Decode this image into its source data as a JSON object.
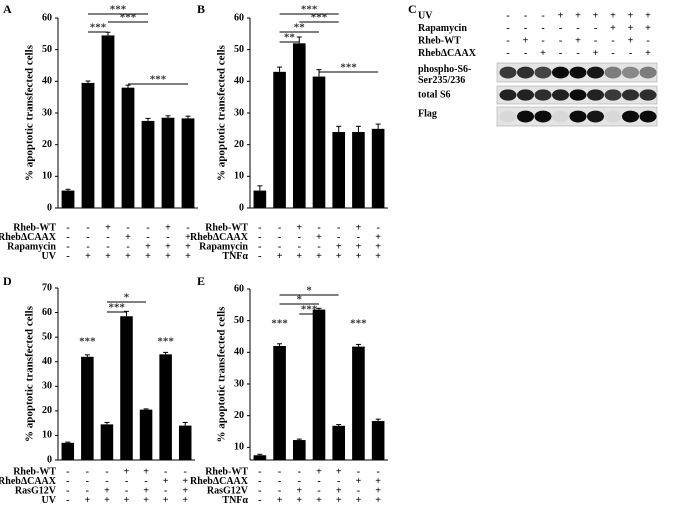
{
  "chart_data": [
    {
      "type": "bar",
      "panel": "A",
      "y_label": "% apoptotic transfected cells",
      "values": [
        5.5,
        39.5,
        54.5,
        38,
        27.5,
        28.5,
        28.3
      ],
      "errors": [
        0.4,
        0.6,
        1,
        0.8,
        0.8,
        0.6,
        0.7
      ],
      "color": "#000000",
      "ylim": [
        0,
        60
      ],
      "yticks": [
        0,
        10,
        20,
        30,
        40,
        50,
        60
      ],
      "conditions": [
        {
          "name": "Rheb-WT",
          "signs": [
            "-",
            "-",
            "+",
            "-",
            "-",
            "+",
            "-"
          ]
        },
        {
          "name": "RhebΔCAAX",
          "signs": [
            "-",
            "-",
            "-",
            "+",
            "-",
            "-",
            "+"
          ]
        },
        {
          "name": "Rapamycin",
          "signs": [
            "-",
            "-",
            "-",
            "-",
            "+",
            "+",
            "+"
          ]
        },
        {
          "name": "UV",
          "signs": [
            "-",
            "+",
            "+",
            "+",
            "+",
            "+",
            "+"
          ]
        }
      ],
      "significance": [
        {
          "text": "***",
          "from": 1,
          "to": 4
        },
        {
          "text": "***",
          "from": 2,
          "to": 4
        },
        {
          "text": "***",
          "from": 1,
          "to": 2
        },
        {
          "text": "***",
          "from": 3,
          "to": 6
        }
      ]
    },
    {
      "type": "bar",
      "panel": "B",
      "y_label": "% apoptotic transfected cells",
      "values": [
        5.5,
        43,
        52,
        41.5,
        24,
        24,
        25
      ],
      "errors": [
        1.5,
        1.5,
        2,
        2.2,
        1.8,
        1.8,
        1.5
      ],
      "color": "#000000",
      "ylim": [
        0,
        60
      ],
      "yticks": [
        0,
        10,
        20,
        30,
        40,
        50,
        60
      ],
      "conditions": [
        {
          "name": "Rheb-WT",
          "signs": [
            "-",
            "-",
            "+",
            "-",
            "-",
            "+",
            "-"
          ]
        },
        {
          "name": "RhebΔCAAX",
          "signs": [
            "-",
            "-",
            "-",
            "+",
            "-",
            "-",
            "+"
          ]
        },
        {
          "name": "Rapamycin",
          "signs": [
            "-",
            "-",
            "-",
            "-",
            "+",
            "+",
            "+"
          ]
        },
        {
          "name": "TNFα",
          "signs": [
            "-",
            "+",
            "+",
            "+",
            "+",
            "+",
            "+"
          ]
        }
      ],
      "significance": [
        {
          "text": "***",
          "from": 1,
          "to": 4
        },
        {
          "text": "***",
          "from": 2,
          "to": 4
        },
        {
          "text": "**",
          "from": 1,
          "to": 3
        },
        {
          "text": "**",
          "from": 1,
          "to": 2
        },
        {
          "text": "***",
          "from": 3,
          "to": 6
        }
      ]
    },
    {
      "type": "bar",
      "panel": "D",
      "y_label": "% apoptotic transfected cells",
      "values": [
        7,
        42,
        14.5,
        58.5,
        20.5,
        43,
        14
      ],
      "errors": [
        0.3,
        0.8,
        0.8,
        2,
        0.3,
        0.8,
        1.3
      ],
      "color": "#000000",
      "ylim": [
        0,
        70
      ],
      "yticks": [
        0,
        10,
        20,
        30,
        40,
        50,
        60,
        70
      ],
      "conditions": [
        {
          "name": "Rheb-WT",
          "signs": [
            "-",
            "-",
            "-",
            "+",
            "+",
            "-",
            "-"
          ]
        },
        {
          "name": "RhebΔCAAX",
          "signs": [
            "-",
            "-",
            "-",
            "-",
            "-",
            "+",
            "+"
          ]
        },
        {
          "name": "RasG12V",
          "signs": [
            "-",
            "-",
            "+",
            "-",
            "+",
            "-",
            "+"
          ]
        },
        {
          "name": "UV",
          "signs": [
            "-",
            "+",
            "+",
            "+",
            "+",
            "+",
            "+"
          ]
        }
      ],
      "significance": [
        {
          "text": "*",
          "from": 2,
          "to": 4
        },
        {
          "text": "***",
          "from": 2,
          "to": 3
        },
        {
          "text": "***",
          "from": 1,
          "to": 1
        },
        {
          "text": "***",
          "from": 5,
          "to": 5
        }
      ]
    },
    {
      "type": "bar",
      "panel": "E",
      "y_label": "% apoptotic transfected cells",
      "values": [
        7.5,
        42,
        12.3,
        53.5,
        16.8,
        41.8,
        18.3
      ],
      "errors": [
        0.3,
        0.7,
        0.3,
        0.4,
        0.4,
        0.7,
        0.6
      ],
      "color": "#000000",
      "ylim": [
        6,
        60
      ],
      "yticks": [
        10,
        20,
        30,
        40,
        50,
        60
      ],
      "conditions": [
        {
          "name": "Rheb-WT",
          "signs": [
            "-",
            "-",
            "-",
            "+",
            "+",
            "-",
            "-"
          ]
        },
        {
          "name": "RhebΔCAAX",
          "signs": [
            "-",
            "-",
            "-",
            "-",
            "-",
            "+",
            "+"
          ]
        },
        {
          "name": "RasG12V",
          "signs": [
            "-",
            "-",
            "+",
            "-",
            "+",
            "-",
            "+"
          ]
        },
        {
          "name": "TNFα",
          "signs": [
            "-",
            "+",
            "+",
            "+",
            "+",
            "+",
            "+"
          ]
        }
      ],
      "significance": [
        {
          "text": "*",
          "from": 1,
          "to": 4
        },
        {
          "text": "*",
          "from": 1,
          "to": 3
        },
        {
          "text": "***",
          "from": 2,
          "to": 3
        },
        {
          "text": "***",
          "from": 1,
          "to": 1
        },
        {
          "text": "***",
          "from": 5,
          "to": 5
        }
      ]
    }
  ],
  "blot": {
    "panel": "C",
    "conditions": [
      {
        "name": "UV",
        "signs": [
          "-",
          "-",
          "-",
          "+",
          "+",
          "+",
          "+",
          "+",
          "+"
        ]
      },
      {
        "name": "Rapamycin",
        "signs": [
          "-",
          "-",
          "-",
          "-",
          "-",
          "-",
          "+",
          "+",
          "+"
        ]
      },
      {
        "name": "Rheb-WT",
        "signs": [
          "-",
          "+",
          "-",
          "-",
          "+",
          "-",
          "-",
          "+",
          "-"
        ]
      },
      {
        "name": "RhebΔCAAX",
        "signs": [
          "-",
          "-",
          "+",
          "-",
          "-",
          "+",
          "-",
          "-",
          "+"
        ]
      }
    ],
    "rows": [
      "phospho-S6-Ser235/236",
      "total S6",
      "Flag"
    ]
  }
}
